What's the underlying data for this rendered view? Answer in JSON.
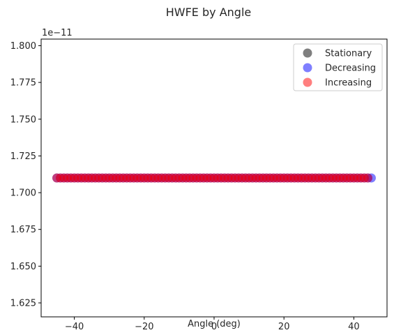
{
  "chart_data": {
    "type": "scatter",
    "title": "HWFE by Angle",
    "xlabel": "Angle (deg)",
    "ylabel": "",
    "y_offset_label": "1e−11",
    "xlim": [
      -49.5,
      49.5
    ],
    "ylim": [
      1.6155,
      1.8045
    ],
    "x_ticks": [
      {
        "value": -40,
        "label": "−40"
      },
      {
        "value": -20,
        "label": "−20"
      },
      {
        "value": 0,
        "label": "0"
      },
      {
        "value": 20,
        "label": "20"
      },
      {
        "value": 40,
        "label": "40"
      }
    ],
    "y_ticks": [
      {
        "value": 1.625,
        "label": "1.625"
      },
      {
        "value": 1.65,
        "label": "1.650"
      },
      {
        "value": 1.675,
        "label": "1.675"
      },
      {
        "value": 1.7,
        "label": "1.700"
      },
      {
        "value": 1.725,
        "label": "1.725"
      },
      {
        "value": 1.75,
        "label": "1.750"
      },
      {
        "value": 1.775,
        "label": "1.775"
      },
      {
        "value": 1.8,
        "label": "1.800"
      }
    ],
    "grid": false,
    "legend_position": "upper-right",
    "series": [
      {
        "name": "Stationary",
        "color": "#000000",
        "alpha": 0.5,
        "x_range": [
          -45,
          45
        ],
        "count": 0,
        "y": 1.71
      },
      {
        "name": "Decreasing",
        "color": "#0000ff",
        "alpha": 0.5,
        "x_range": [
          -45,
          45
        ],
        "count": 91,
        "y": 1.71
      },
      {
        "name": "Increasing",
        "color": "#ff0000",
        "alpha": 0.5,
        "x_range": [
          -45,
          44
        ],
        "count": 90,
        "y": 1.71
      }
    ]
  }
}
